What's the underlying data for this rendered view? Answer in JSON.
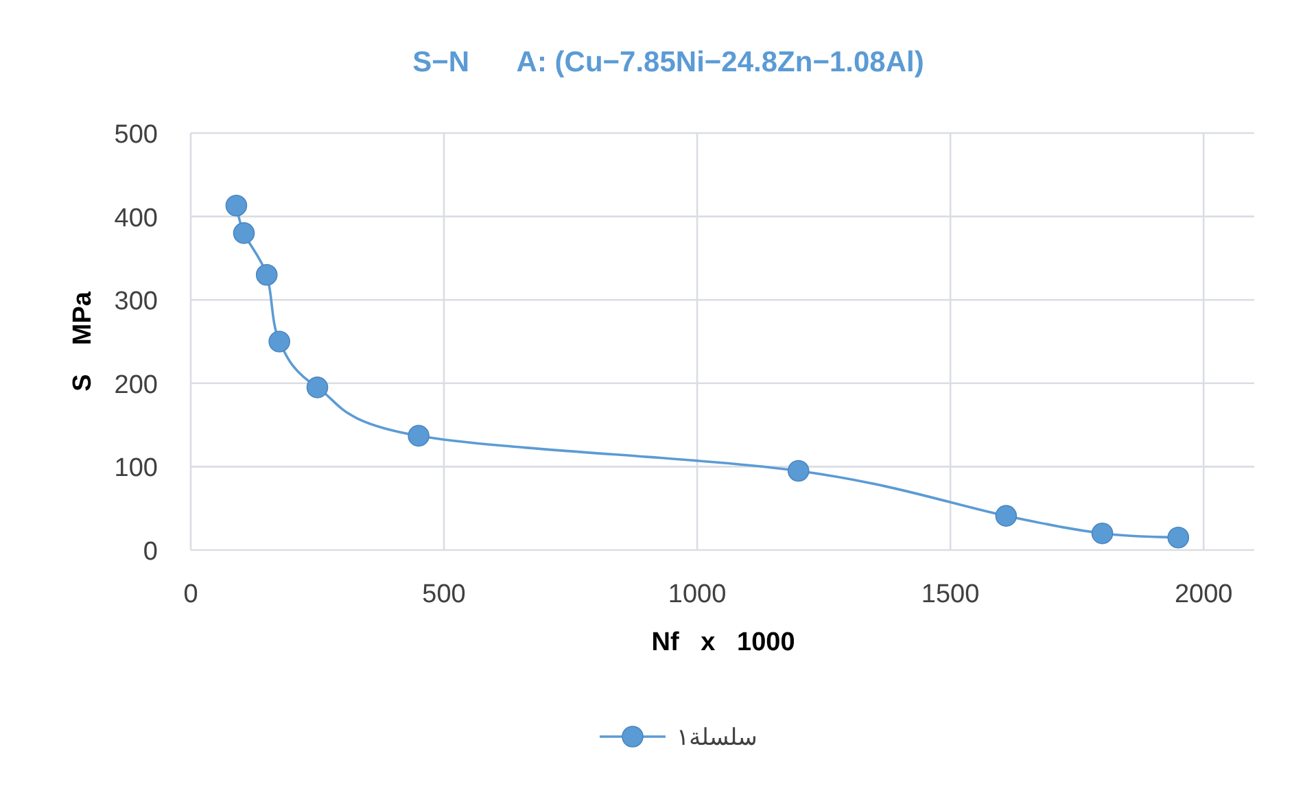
{
  "chart_data": {
    "type": "line",
    "title": "S−N      A: (Cu−7.85Ni−24.8Zn−1.08Al)",
    "xlabel": "Nf   x   1000",
    "ylabel": "S    MPa",
    "x": [
      90,
      105,
      150,
      175,
      250,
      450,
      1200,
      1610,
      1800,
      1950
    ],
    "series": [
      {
        "name": "سلسلة١",
        "color": "#5b9bd5",
        "values": [
          413,
          380,
          330,
          250,
          195,
          137,
          95,
          41,
          20,
          15
        ]
      }
    ],
    "xlim": [
      0,
      2100
    ],
    "ylim": [
      0,
      500
    ],
    "xticks": [
      0,
      500,
      1000,
      1500,
      2000
    ],
    "yticks": [
      0,
      100,
      200,
      300,
      400,
      500
    ],
    "grid": true,
    "legend": "bottom",
    "marker": "circle",
    "line_style": "solid"
  }
}
